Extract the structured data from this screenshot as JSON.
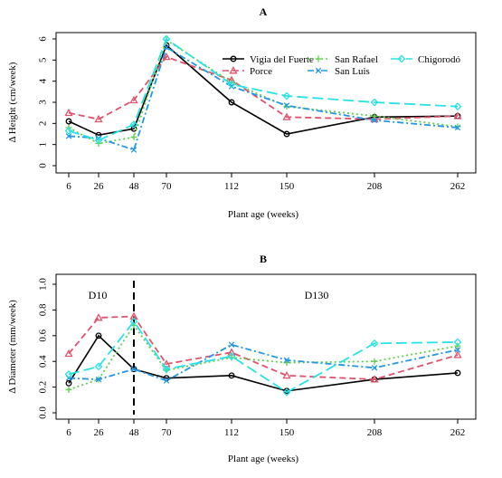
{
  "chart_data": [
    {
      "type": "line",
      "title": "A",
      "xlabel": "Plant age (weeks)",
      "ylabel": "Δ Height (cm/week)",
      "categories": [
        "6",
        "26",
        "48",
        "70",
        "112",
        "150",
        "208",
        "262"
      ],
      "yticks": [
        "0",
        "1",
        "2",
        "3",
        "4",
        "5",
        "6"
      ],
      "ylim": [
        0,
        6.3
      ],
      "legend_position": "top-right",
      "grid": false,
      "series": [
        {
          "name": "Vigia del Fuerte",
          "color": "#000000",
          "dash": "",
          "marker": "circle",
          "values": [
            2.1,
            1.45,
            1.75,
            5.7,
            3.0,
            1.5,
            2.3,
            2.35
          ]
        },
        {
          "name": "Porce",
          "color": "#df536b",
          "dash": "7,4",
          "marker": "triangle",
          "values": [
            2.5,
            2.2,
            3.1,
            5.15,
            4.05,
            2.3,
            2.2,
            2.35
          ]
        },
        {
          "name": "San Rafael",
          "color": "#61d04f",
          "dash": "2,3",
          "marker": "plus",
          "values": [
            1.8,
            1.05,
            1.35,
            5.95,
            3.95,
            2.8,
            2.35,
            1.85
          ]
        },
        {
          "name": "San Luis",
          "color": "#2297e6",
          "dash": "7,3,2,3",
          "marker": "x",
          "values": [
            1.4,
            1.3,
            0.75,
            5.6,
            3.75,
            2.85,
            2.15,
            1.8
          ]
        },
        {
          "name": "Chigorodó",
          "color": "#28e2e5",
          "dash": "12,5",
          "marker": "diamond",
          "values": [
            1.65,
            1.2,
            1.95,
            6.0,
            3.85,
            3.3,
            3.0,
            2.8
          ]
        }
      ]
    },
    {
      "type": "line",
      "title": "B",
      "xlabel": "Plant age (weeks)",
      "ylabel": "Δ Diameter (mm/week)",
      "categories": [
        "6",
        "26",
        "48",
        "70",
        "112",
        "150",
        "208",
        "262"
      ],
      "yticks": [
        "0.0",
        "0.2",
        "0.4",
        "0.6",
        "0.8",
        "1.0"
      ],
      "ylim": [
        0,
        1.0
      ],
      "grid": false,
      "annotations": [
        "D10",
        "D130"
      ],
      "series": [
        {
          "name": "Vigia del Fuerte",
          "color": "#000000",
          "dash": "",
          "marker": "circle",
          "values": [
            0.23,
            0.6,
            0.34,
            0.27,
            0.29,
            0.17,
            0.26,
            0.31
          ]
        },
        {
          "name": "Porce",
          "color": "#df536b",
          "dash": "7,4",
          "marker": "triangle",
          "values": [
            0.46,
            0.74,
            0.75,
            0.38,
            0.47,
            0.29,
            0.26,
            0.45
          ]
        },
        {
          "name": "San Rafael",
          "color": "#61d04f",
          "dash": "2,3",
          "marker": "plus",
          "values": [
            0.18,
            0.26,
            0.68,
            0.33,
            0.43,
            0.39,
            0.4,
            0.52
          ]
        },
        {
          "name": "San Luis",
          "color": "#2297e6",
          "dash": "7,3,2,3",
          "marker": "x",
          "values": [
            0.27,
            0.26,
            0.34,
            0.25,
            0.53,
            0.41,
            0.35,
            0.49
          ]
        },
        {
          "name": "Chigorodó",
          "color": "#28e2e5",
          "dash": "12,5",
          "marker": "diamond",
          "values": [
            0.3,
            0.36,
            0.71,
            0.34,
            0.44,
            0.16,
            0.54,
            0.55
          ]
        }
      ]
    }
  ]
}
